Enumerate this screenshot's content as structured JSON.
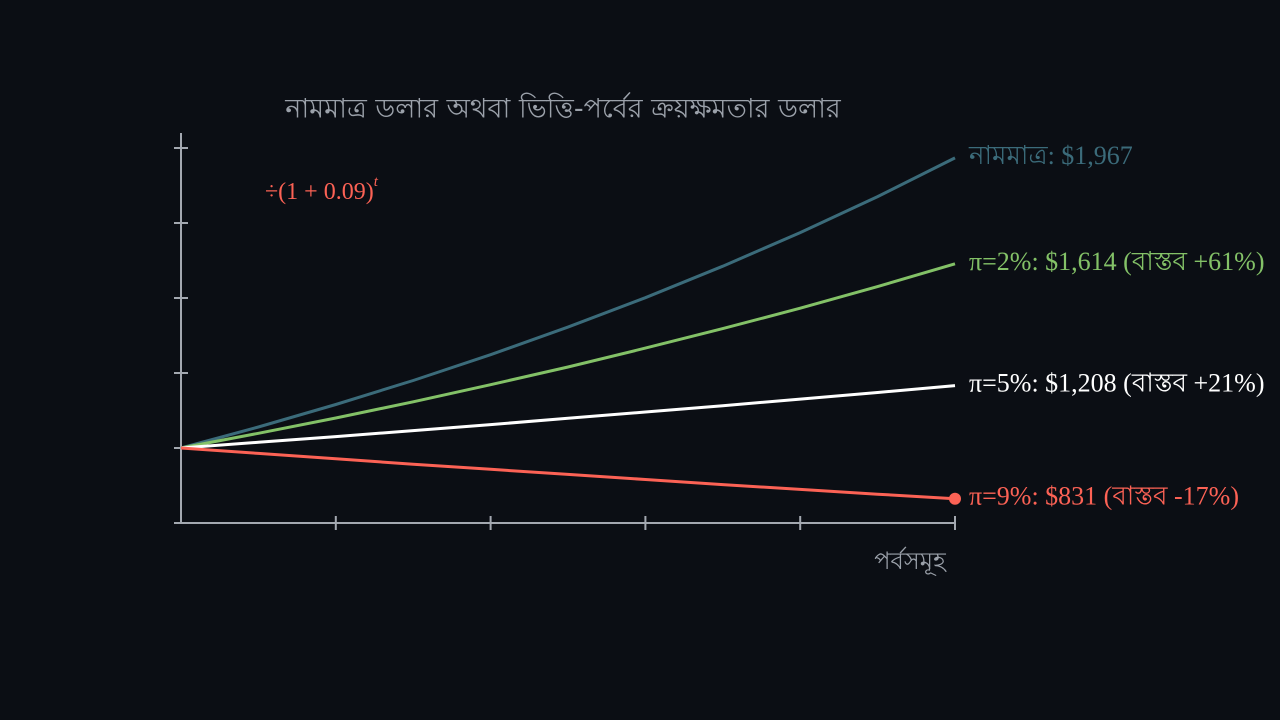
{
  "chart_data": {
    "type": "line",
    "title": "নামমাত্র ডলার অথবা ভিত্তি-পর্বের ক্রয়ক্ষমতার ডলার",
    "x_label": "পর্বসমূহ",
    "annotation": {
      "text": "÷(1 + 0.09)",
      "superscript": "t",
      "color": "#fc6255"
    },
    "x": [
      0,
      1,
      2,
      3,
      4,
      5,
      6,
      7,
      8,
      9,
      10
    ],
    "xlim": [
      0,
      10
    ],
    "xticks": [
      2,
      4,
      6,
      8,
      10
    ],
    "ylim": [
      750,
      2050
    ],
    "yticks": [
      1000,
      1250,
      1500,
      1750,
      2000
    ],
    "series": [
      {
        "name": "নামমাত্র: $1,967",
        "color": "#3b6b7a",
        "values": [
          1000,
          1070,
          1145,
          1225,
          1311,
          1403,
          1501,
          1606,
          1718,
          1838,
          1967
        ]
      },
      {
        "name": "π=2%: $1,614 (বাস্তব +61%)",
        "color": "#83c167",
        "values": [
          1000,
          1049,
          1100,
          1154,
          1211,
          1270,
          1333,
          1398,
          1466,
          1538,
          1614
        ]
      },
      {
        "name": "π=5%: $1,208 (বাস্তব +21%)",
        "color": "#ffffff",
        "values": [
          1000,
          1019,
          1038,
          1058,
          1078,
          1099,
          1120,
          1141,
          1163,
          1185,
          1208
        ]
      },
      {
        "name": "π=9%: $831 (বাস্তব -17%)",
        "color": "#fc6255",
        "values": [
          1000,
          982,
          964,
          946,
          929,
          912,
          895,
          878,
          862,
          846,
          831
        ],
        "end_dot": true
      }
    ]
  }
}
